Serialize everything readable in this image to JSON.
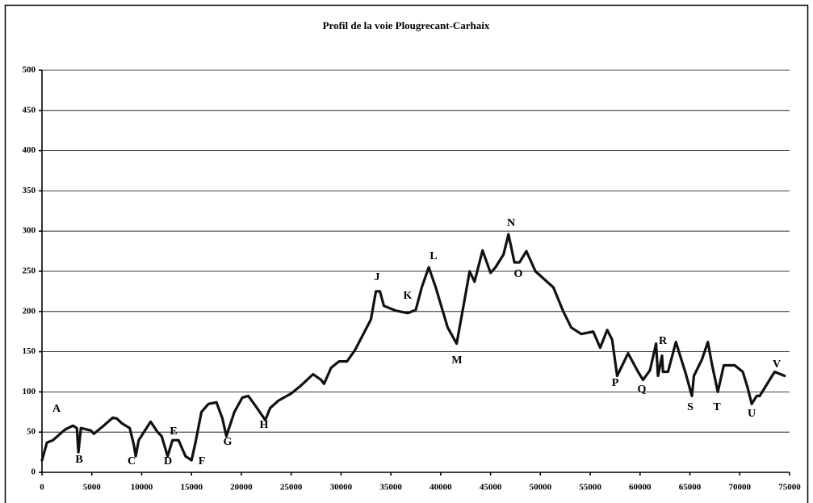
{
  "chart_data": {
    "type": "line",
    "title": "Profil de la voie Plougrecant-Carhaix",
    "xlim": [
      0,
      75000
    ],
    "ylim": [
      0,
      500
    ],
    "xticks": [
      0,
      5000,
      10000,
      15000,
      20000,
      25000,
      30000,
      35000,
      40000,
      45000,
      50000,
      55000,
      60000,
      65000,
      70000,
      75000
    ],
    "yticks": [
      0,
      50,
      100,
      150,
      200,
      250,
      300,
      350,
      400,
      450,
      500
    ],
    "grid": true,
    "series": [
      {
        "color": "#111111",
        "x": [
          0,
          500,
          1100,
          2300,
          3100,
          3500,
          3650,
          3900,
          4900,
          5200,
          6200,
          7100,
          7500,
          8000,
          8800,
          9200,
          9400,
          9700,
          10900,
          11600,
          12000,
          12600,
          13100,
          13700,
          14400,
          15000,
          15400,
          16000,
          16700,
          17500,
          18100,
          18500,
          19300,
          20100,
          20700,
          21400,
          22400,
          22900,
          23700,
          25000,
          25900,
          27200,
          28000,
          28300,
          29000,
          29800,
          30600,
          31400,
          33000,
          33500,
          33900,
          34300,
          35500,
          36700,
          37500,
          38100,
          38800,
          39500,
          40700,
          41600,
          42400,
          42900,
          43400,
          44200,
          45000,
          45500,
          46300,
          46800,
          47400,
          47900,
          48600,
          49500,
          51300,
          52300,
          53100,
          54100,
          55300,
          56000,
          56700,
          57200,
          57700,
          58800,
          59800,
          60300,
          61000,
          61600,
          61800,
          62200,
          62300,
          62800,
          63600,
          64600,
          65200,
          65400,
          66200,
          66800,
          67200,
          67800,
          68400,
          69500,
          70300,
          70800,
          71200,
          71700,
          72000,
          73100,
          73500,
          74500
        ],
        "values": [
          15,
          37,
          40,
          53,
          58,
          55,
          25,
          55,
          52,
          48,
          58,
          68,
          67,
          61,
          55,
          35,
          20,
          40,
          63,
          50,
          45,
          20,
          40,
          40,
          20,
          15,
          37,
          75,
          85,
          87,
          67,
          45,
          75,
          93,
          95,
          83,
          65,
          80,
          89,
          98,
          107,
          122,
          115,
          110,
          130,
          138,
          138,
          152,
          190,
          225,
          225,
          207,
          201,
          198,
          202,
          230,
          255,
          230,
          180,
          160,
          215,
          250,
          237,
          276,
          248,
          255,
          271,
          296,
          261,
          261,
          275,
          250,
          230,
          200,
          180,
          172,
          175,
          155,
          177,
          165,
          120,
          148,
          125,
          115,
          127,
          160,
          120,
          145,
          125,
          125,
          162,
          122,
          95,
          120,
          140,
          162,
          135,
          100,
          133,
          133,
          125,
          105,
          85,
          95,
          95,
          117,
          125,
          120
        ]
      }
    ],
    "annotations": [
      "A",
      "B",
      "C",
      "D",
      "E",
      "F",
      "G",
      "H",
      "J",
      "K",
      "L",
      "M",
      "N",
      "O",
      "P",
      "Q",
      "R",
      "S",
      "T",
      "U",
      "V"
    ]
  }
}
